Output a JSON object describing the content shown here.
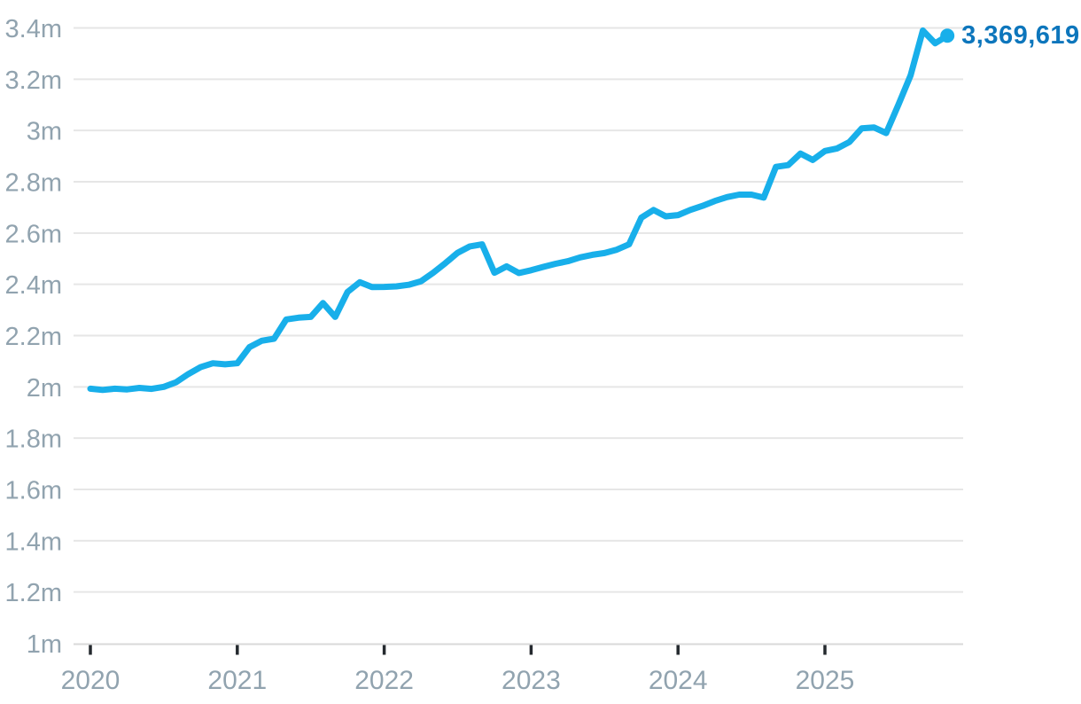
{
  "chart_data": {
    "type": "line",
    "title": "",
    "xlabel": "",
    "ylabel": "",
    "legend": "none",
    "grid": "horizontal",
    "series": [
      {
        "name": "value",
        "start_month": "2020-01",
        "frequency": "monthly",
        "values": [
          1993000,
          1988000,
          1993000,
          1990000,
          1996000,
          1992000,
          2000000,
          2018000,
          2050000,
          2077000,
          2092000,
          2088000,
          2092000,
          2155000,
          2180000,
          2188000,
          2263000,
          2270000,
          2273000,
          2327000,
          2273000,
          2370000,
          2408000,
          2389000,
          2390000,
          2392000,
          2398000,
          2412000,
          2445000,
          2483000,
          2523000,
          2548000,
          2556000,
          2445000,
          2470000,
          2444000,
          2455000,
          2468000,
          2480000,
          2490000,
          2505000,
          2515000,
          2522000,
          2535000,
          2556000,
          2660000,
          2690000,
          2665000,
          2670000,
          2690000,
          2706000,
          2725000,
          2740000,
          2750000,
          2750000,
          2738000,
          2858000,
          2865000,
          2910000,
          2885000,
          2920000,
          2930000,
          2955000,
          3008000,
          3012000,
          2990000,
          3100000,
          3215000,
          3390000,
          3340000,
          3369619
        ]
      }
    ],
    "last_point": {
      "month": "2025-11",
      "value": 3369619,
      "label": "3,369,619"
    },
    "y_axis": {
      "range": [
        1000000,
        3400000
      ],
      "ticks": [
        {
          "label": "3.4m",
          "value": 3400000
        },
        {
          "label": "3.2m",
          "value": 3200000
        },
        {
          "label": "3m",
          "value": 3000000
        },
        {
          "label": "2.8m",
          "value": 2800000
        },
        {
          "label": "2.6m",
          "value": 2600000
        },
        {
          "label": "2.4m",
          "value": 2400000
        },
        {
          "label": "2.2m",
          "value": 2200000
        },
        {
          "label": "2m",
          "value": 2000000
        },
        {
          "label": "1.8m",
          "value": 1800000
        },
        {
          "label": "1.6m",
          "value": 1600000
        },
        {
          "label": "1.4m",
          "value": 1400000
        },
        {
          "label": "1.2m",
          "value": 1200000
        },
        {
          "label": "1m",
          "value": 1000000
        }
      ]
    },
    "x_axis": {
      "ticks": [
        {
          "label": "2020",
          "month_index": 0
        },
        {
          "label": "2021",
          "month_index": 12
        },
        {
          "label": "2022",
          "month_index": 24
        },
        {
          "label": "2023",
          "month_index": 36
        },
        {
          "label": "2024",
          "month_index": 48
        },
        {
          "label": "2025",
          "month_index": 60
        }
      ]
    },
    "colors": {
      "line": "#18AFEA",
      "end_dot": "#18AFEA",
      "end_label": "#0D76BC",
      "axis_text": "#91A3AF",
      "grid_line": "#E6E6E6",
      "axis_line": "#D9D9D9",
      "tick_mark": "#24292E",
      "background": "#FFFFFF"
    }
  }
}
